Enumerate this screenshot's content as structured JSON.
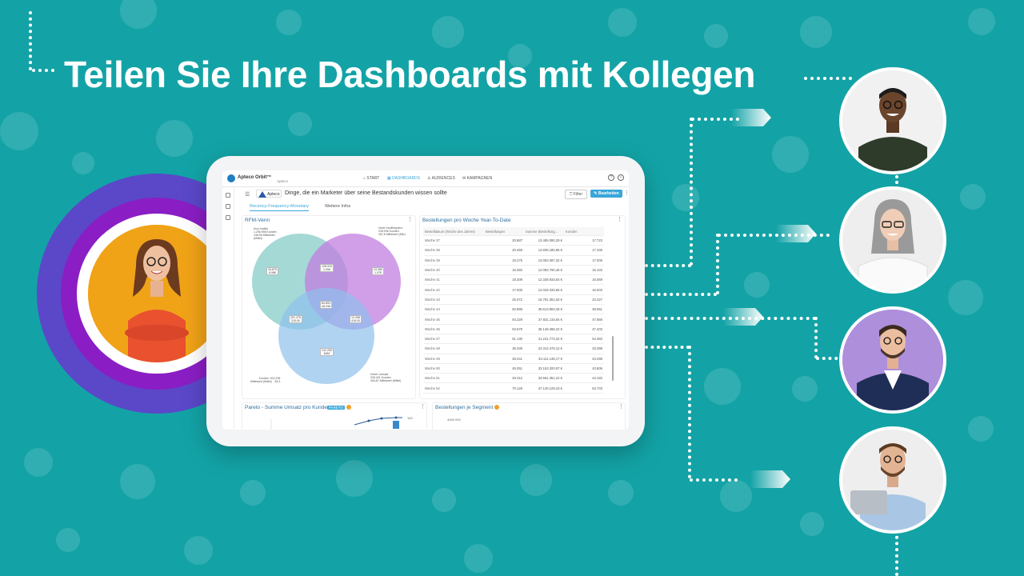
{
  "headline": "Teilen Sie Ihre Dashboards mit Kollegen",
  "colors": {
    "background": "#13a3a6",
    "accent": "#3aa6d9",
    "ring_outer": "#5a48c8",
    "ring_inner": "#8a1ec4"
  },
  "app": {
    "brand": "Apteco Orbit™",
    "brand_sub": "Apteco",
    "nav": [
      "START",
      "DASHBOARDS",
      "AUDIENCES",
      "KAMPAGNEN"
    ],
    "active_nav": "DASHBOARDS",
    "logo_text": "Apteco",
    "page_title": "Dinge, die ein Marketer über seine Bestandskunden wissen sollte",
    "filter_label": "Filter",
    "edit_label": "Bearbeiten",
    "tabs": [
      "Recency-Frequency-Monetary",
      "Weitere Infos"
    ],
    "active_tab": "Recency-Frequency-Monetary"
  },
  "venn": {
    "title": "RFM-Venn",
    "labels": [
      "128.919\n1.096",
      "24.389\n1.07€",
      "16.879\n8.08€",
      "84.893\n48.038",
      "291.475\n315.00",
      "12.398\n418.00",
      "141.290\n4682"
    ],
    "notes": [
      "Kurz inaktiv\n1.296.998 Kunden\n196,55 Mittelwert\n(Mittel)",
      "Hohe Kauffrequenz\n228.936 Kunden\n267,8 Mittelwert (Min)",
      "Kunden: 302.235\nMittelwert (Mittel)    84,3",
      "Hoher Umsatz\n205.401 Kunden\n494,87 Mittelwert (Mittel)"
    ]
  },
  "weekly": {
    "title": "Bestellungen pro Woche Year-To-Date",
    "columns": [
      "Bestelldatum (Woche des Jahres)",
      "Bestellungen",
      "Summe (Bestellung...",
      "Kunden"
    ],
    "rows": [
      [
        "Woche 37",
        "20.887",
        "13.485.080,29 €",
        "17.723"
      ],
      [
        "Woche 38",
        "20.458",
        "13.835.185,86 €",
        "17.336"
      ],
      [
        "Woche 39",
        "19.275",
        "13.063.387,32 €",
        "17.006"
      ],
      [
        "Woche 40",
        "18.350",
        "12.083.790,46 €",
        "16.103"
      ],
      [
        "Woche 41",
        "18.309",
        "12.339.933,64 €",
        "16.069"
      ],
      [
        "Woche 42",
        "17.936",
        "12.029.333,65 €",
        "16.003"
      ],
      [
        "Woche 43",
        "25.072",
        "16.791.351,53 €",
        "23.327"
      ],
      [
        "Woche 44",
        "52.888",
        "35.613.883,46 €",
        "48.951"
      ],
      [
        "Woche 45",
        "54.229",
        "37.631.115,84 €",
        "47.666"
      ],
      [
        "Woche 46",
        "53.679",
        "36.149.486,22 €",
        "47.403"
      ],
      [
        "Woche 47",
        "61.130",
        "41.241.773,22 €",
        "54.383"
      ],
      [
        "Woche 48",
        "36.336",
        "24.314.476,12 €",
        "33.398"
      ],
      [
        "Woche 49",
        "49.241",
        "33.114.138,17 €",
        "43.296"
      ],
      [
        "Woche 50",
        "49.351",
        "33.153.200,97 €",
        "43.506"
      ],
      [
        "Woche 51",
        "49.312",
        "33.561.351,22 €",
        "43.182"
      ],
      [
        "Woche 52",
        "70.128",
        "47.140.129,43 €",
        "63.733"
      ]
    ]
  },
  "pareto": {
    "title": "Pareto - Summe Umsatz pro Kunde",
    "tag": "PARETO",
    "axis_label": "100"
  },
  "segment": {
    "title": "Bestellungen je Segment",
    "axis_label": "4000 000"
  }
}
